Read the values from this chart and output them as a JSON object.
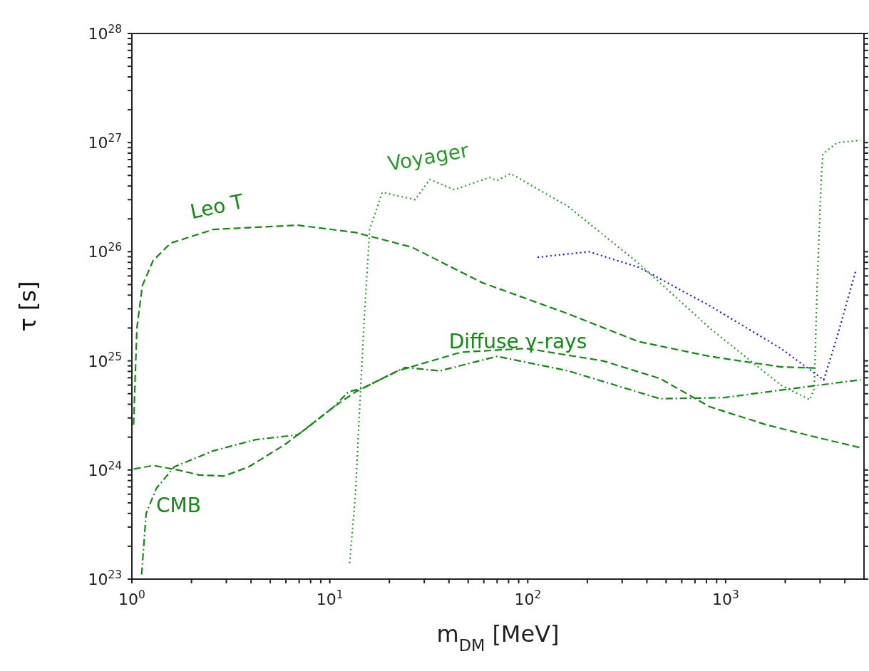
{
  "chart_data": {
    "type": "line",
    "log": "xy",
    "xlabel": "m$_{DM}$ [MeV]",
    "ylabel": "τ  [s]",
    "xlim": [
      1,
      5000
    ],
    "ylim": [
      1e+23,
      1e+28
    ],
    "xticks": [
      {
        "value": 1,
        "label": "10$^{0}$"
      },
      {
        "value": 2,
        "label": null
      },
      {
        "value": 3,
        "label": null
      },
      {
        "value": 4,
        "label": null
      },
      {
        "value": 5,
        "label": null
      },
      {
        "value": 6,
        "label": null
      },
      {
        "value": 7,
        "label": null
      },
      {
        "value": 8,
        "label": null
      },
      {
        "value": 9,
        "label": null
      },
      {
        "value": 10,
        "label": "10$^{1}$"
      },
      {
        "value": 20,
        "label": null
      },
      {
        "value": 30,
        "label": null
      },
      {
        "value": 40,
        "label": null
      },
      {
        "value": 50,
        "label": null
      },
      {
        "value": 60,
        "label": null
      },
      {
        "value": 70,
        "label": null
      },
      {
        "value": 80,
        "label": null
      },
      {
        "value": 90,
        "label": null
      },
      {
        "value": 100,
        "label": "10$^{2}$"
      },
      {
        "value": 200,
        "label": null
      },
      {
        "value": 300,
        "label": null
      },
      {
        "value": 400,
        "label": null
      },
      {
        "value": 500,
        "label": null
      },
      {
        "value": 600,
        "label": null
      },
      {
        "value": 700,
        "label": null
      },
      {
        "value": 800,
        "label": null
      },
      {
        "value": 900,
        "label": null
      },
      {
        "value": 1000,
        "label": "10$^{3}$"
      },
      {
        "value": 2000,
        "label": null
      },
      {
        "value": 3000,
        "label": null
      },
      {
        "value": 4000,
        "label": null
      }
    ],
    "yticks": [
      {
        "value": 1e+23,
        "label": "10$^{23}$"
      },
      {
        "value": 2e+23,
        "label": null
      },
      {
        "value": 3e+23,
        "label": null
      },
      {
        "value": 4e+23,
        "label": null
      },
      {
        "value": 5e+23,
        "label": null
      },
      {
        "value": 6e+23,
        "label": null
      },
      {
        "value": 7e+23,
        "label": null
      },
      {
        "value": 8e+23,
        "label": null
      },
      {
        "value": 9e+23,
        "label": null
      },
      {
        "value": 1e+24,
        "label": "10$^{24}$"
      },
      {
        "value": 2e+24,
        "label": null
      },
      {
        "value": 3e+24,
        "label": null
      },
      {
        "value": 4e+24,
        "label": null
      },
      {
        "value": 5e+24,
        "label": null
      },
      {
        "value": 6e+24,
        "label": null
      },
      {
        "value": 7e+24,
        "label": null
      },
      {
        "value": 8e+24,
        "label": null
      },
      {
        "value": 9e+24,
        "label": null
      },
      {
        "value": 1e+25,
        "label": "10$^{25}$"
      },
      {
        "value": 2e+25,
        "label": null
      },
      {
        "value": 3e+25,
        "label": null
      },
      {
        "value": 4e+25,
        "label": null
      },
      {
        "value": 5e+25,
        "label": null
      },
      {
        "value": 6e+25,
        "label": null
      },
      {
        "value": 7e+25,
        "label": null
      },
      {
        "value": 8e+25,
        "label": null
      },
      {
        "value": 9e+25,
        "label": null
      },
      {
        "value": 1e+26,
        "label": "10$^{26}$"
      },
      {
        "value": 2e+26,
        "label": null
      },
      {
        "value": 3e+26,
        "label": null
      },
      {
        "value": 4e+26,
        "label": null
      },
      {
        "value": 5e+26,
        "label": null
      },
      {
        "value": 6e+26,
        "label": null
      },
      {
        "value": 7e+26,
        "label": null
      },
      {
        "value": 8e+26,
        "label": null
      },
      {
        "value": 9e+26,
        "label": null
      },
      {
        "value": 1e+27,
        "label": "10$^{27}$"
      },
      {
        "value": 2e+27,
        "label": null
      },
      {
        "value": 3e+27,
        "label": null
      },
      {
        "value": 4e+27,
        "label": null
      },
      {
        "value": 5e+27,
        "label": null
      },
      {
        "value": 6e+27,
        "label": null
      },
      {
        "value": 7e+27,
        "label": null
      },
      {
        "value": 8e+27,
        "label": null
      },
      {
        "value": 9e+27,
        "label": null
      },
      {
        "value": 1e+28,
        "label": "10$^{28}$"
      }
    ],
    "series": [
      {
        "name": "Leo T",
        "color": "#138a13",
        "line_style": "dashed",
        "x": [
          1.02,
          1.06,
          1.13,
          1.28,
          1.57,
          2.58,
          6.9,
          13.5,
          26,
          59,
          160,
          364,
          830,
          1900,
          2850
        ],
        "values": [
          2.6e+24,
          2e+25,
          4.9e+25,
          8.3e+25,
          1.2e+26,
          1.6e+26,
          1.75e+26,
          1.5e+26,
          1.1e+26,
          5.2e+25,
          2.7e+25,
          1.5e+25,
          1.1e+25,
          8.8e+24,
          8.6e+24
        ]
      },
      {
        "name": "Voyager",
        "color": "#2a9a2a",
        "line_style": "dotted",
        "x": [
          12.6,
          13.5,
          14.0,
          14.9,
          15.9,
          18.4,
          27,
          32,
          42.6,
          64,
          70,
          82,
          160,
          364,
          830,
          1900,
          2660,
          2800,
          2900,
          3040,
          3100,
          3670,
          4800
        ],
        "values": [
          1.4e+23,
          6.3e+23,
          2.5e+24,
          2.3e+25,
          1.6e+26,
          3.5e+26,
          3e+26,
          4.6e+26,
          3.7e+26,
          4.8e+26,
          4.5e+26,
          5.2e+26,
          2.6e+26,
          7.8e+25,
          2e+25,
          6e+24,
          4.4e+24,
          5.5e+24,
          5e+25,
          4.7e+26,
          7.9e+26,
          1e+27,
          1.05e+27
        ]
      },
      {
        "color": "#1010ff",
        "line_style": "dotted",
        "x": [
          112,
          204,
          364,
          830,
          1900,
          3130,
          3670,
          4530
        ],
        "values": [
          8.9e+25,
          1e+26,
          7.2e+25,
          3.2e+25,
          1.3e+25,
          6.7e+24,
          1.7e+25,
          6.6e+25
        ]
      },
      {
        "name": "Diffuse γ-rays",
        "color": "#138a13",
        "line_style": "dashed",
        "x": [
          1.02,
          1.28,
          1.71,
          2.19,
          2.92,
          3.9,
          5.9,
          7.6,
          10.5,
          13.5,
          22,
          46,
          98,
          240,
          465,
          830,
          1600,
          2850,
          4800
        ],
        "values": [
          1.02e+24,
          1.1e+24,
          1e+24,
          9e+23,
          8.8e+23,
          1.07e+24,
          1.7e+24,
          2.4e+24,
          3.8e+24,
          5.2e+24,
          8.1e+24,
          1.2e+25,
          1.3e+25,
          1e+25,
          6.9e+24,
          3.8e+24,
          2.6e+24,
          2e+24,
          1.6e+24
        ]
      },
      {
        "name": "CMB",
        "color": "#138a13",
        "line_style": "dashdot",
        "x": [
          1.12,
          1.18,
          1.33,
          1.64,
          2.58,
          4.24,
          6.9,
          10.5,
          12.4,
          14.6,
          24,
          36,
          70,
          160,
          465,
          980,
          1900,
          4800
        ],
        "values": [
          1.1e+23,
          4e+23,
          6.8e+23,
          1.07e+24,
          1.5e+24,
          1.9e+24,
          2.1e+24,
          3.8e+24,
          5.2e+24,
          5.6e+24,
          8.7e+24,
          8.1e+24,
          1.1e+25,
          8.1e+24,
          4.5e+24,
          4.6e+24,
          5.4e+24,
          6.7e+24
        ]
      }
    ]
  }
}
